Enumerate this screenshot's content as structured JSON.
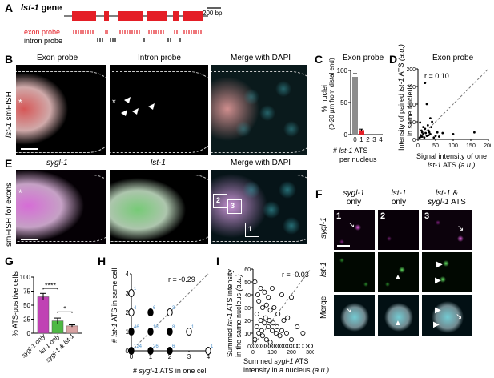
{
  "panels": {
    "A": {
      "letter": "A",
      "title_gene": "lst-1",
      "title_suffix": " gene",
      "scale_label": "200 bp",
      "exon_probe": "exon probe",
      "intron_probe": "intron probe"
    },
    "B": {
      "letter": "B",
      "row_label_gene": "lst-1",
      "row_label_suffix": " smFISH",
      "col1": "Exon  probe",
      "col2": "Intron probe",
      "col3": "Merge with DAPI"
    },
    "C": {
      "letter": "C",
      "title": "Exon probe",
      "ylabel_line1": "% nuclei",
      "ylabel_line2": "(0-20 µm from distal end)",
      "xlabel_gene": "lst-1",
      "xlabel_prefix": "# ",
      "xlabel_suffix": " ATS",
      "xlabel_line2": "per nucleus",
      "y_ticks": [
        "0",
        "50",
        "100"
      ],
      "x_ticks": [
        "0",
        "1",
        "2",
        "3",
        "4"
      ]
    },
    "D": {
      "letter": "D",
      "title": "Exon probe",
      "r_label": "r = 0.10",
      "ylabel_pre": "Intensity of paired ",
      "ylabel_gene": "lst-1",
      "ylabel_post": " ATS",
      "ylabel_line2": "in same nucleus",
      "ylabel_unit": "(a.u.)",
      "xlabel_line1": "Signal intensity of one",
      "xlabel_gene": "lst-1",
      "xlabel_post": " ATS",
      "xlabel_unit": "(a.u.)",
      "x_ticks": [
        "0",
        "50",
        "100",
        "150",
        "200"
      ],
      "y_ticks": [
        "0",
        "50",
        "100",
        "150",
        "200"
      ]
    },
    "E": {
      "letter": "E",
      "row_label": "smFISH for exons",
      "col1": "sygl-1",
      "col2": "lst-1",
      "col3": "Merge with DAPI",
      "boxes": [
        "1",
        "2",
        "3"
      ]
    },
    "F": {
      "letter": "F",
      "col1_gene": "sygl-1",
      "col1_line2": "only",
      "col2_gene": "lst-1",
      "col2_line2": "only",
      "col3_gene1": "lst-1",
      "col3_amp": " &",
      "col3_gene2": "sygl-1",
      "col3_post": " ATS",
      "row1": "sygl-1",
      "row2": "lst-1",
      "row3": "Merge",
      "tile_nums": [
        "1",
        "2",
        "3"
      ]
    },
    "G": {
      "letter": "G",
      "ylabel": "% ATS-positive cells",
      "y_ticks": [
        "0",
        "25",
        "50",
        "75",
        "100"
      ],
      "sig1": "****",
      "sig2": "*",
      "categories": [
        "sygl-1 only",
        "lst-1 only",
        "sygl-1 & lst-1"
      ]
    },
    "H": {
      "letter": "H",
      "r_label": "r = -0.29",
      "ylabel_pre": "# ",
      "ylabel_gene": "lst-1",
      "ylabel_post": " ATS in same cell",
      "xlabel_pre": "# ",
      "xlabel_gene": "sygl-1",
      "xlabel_post": " ATS in one cell",
      "x_ticks": [
        "0",
        "1",
        "2",
        "3",
        "4"
      ],
      "y_ticks": [
        "0",
        "1",
        "2",
        "3",
        "4"
      ],
      "counts": [
        "1",
        "4",
        "6",
        "3",
        "46",
        "18",
        "8",
        "1",
        "124",
        "26",
        "6",
        "1"
      ]
    },
    "I": {
      "letter": "I",
      "r_label": "r = -0.03",
      "ylabel_line1_pre": "Summed ",
      "ylabel_gene": "lst-1",
      "ylabel_line1_post": " ATS intensity",
      "ylabel_line2": "in the same nucleus",
      "ylabel_unit": "(a.u.)",
      "xlabel_line1_pre": "Summed ",
      "xlabel_gene": "sygl-1",
      "xlabel_line1_post": " ATS",
      "xlabel_line2": "intensity in a nucleus",
      "xlabel_unit": "(a.u.)",
      "x_ticks": [
        "0",
        "100",
        "200",
        "300"
      ],
      "y_ticks": [
        "0",
        "10",
        "20",
        "30",
        "40",
        "50",
        "60"
      ]
    }
  },
  "chart_data": [
    {
      "type": "bar",
      "panel": "C",
      "categories": [
        "0",
        "1",
        "2",
        "3",
        "4"
      ],
      "values": [
        90,
        7,
        0,
        0,
        0
      ],
      "errors": [
        5,
        1.5,
        0,
        0,
        0
      ],
      "ylim": [
        0,
        100
      ],
      "colors": [
        "#8c8c8c",
        "#e41e26",
        "#e41e26",
        "#e41e26",
        "#e41e26"
      ]
    },
    {
      "type": "scatter",
      "panel": "D",
      "xlim": [
        0,
        200
      ],
      "ylim": [
        0,
        200
      ],
      "points": [
        [
          5,
          5
        ],
        [
          8,
          12
        ],
        [
          10,
          8
        ],
        [
          12,
          20
        ],
        [
          15,
          15
        ],
        [
          18,
          5
        ],
        [
          20,
          30
        ],
        [
          22,
          18
        ],
        [
          25,
          10
        ],
        [
          28,
          40
        ],
        [
          30,
          25
        ],
        [
          32,
          20
        ],
        [
          35,
          15
        ],
        [
          38,
          35
        ],
        [
          40,
          50
        ],
        [
          20,
          160
        ],
        [
          25,
          100
        ],
        [
          45,
          5
        ],
        [
          50,
          10
        ],
        [
          55,
          20
        ],
        [
          60,
          8
        ],
        [
          15,
          35
        ],
        [
          10,
          25
        ],
        [
          100,
          15
        ],
        [
          160,
          20
        ],
        [
          35,
          60
        ],
        [
          6,
          48
        ],
        [
          30,
          12
        ],
        [
          12,
          8
        ],
        [
          70,
          18
        ]
      ]
    },
    {
      "type": "bar",
      "panel": "G",
      "categories": [
        "sygl-1 only",
        "lst-1 only",
        "sygl-1 & lst-1"
      ],
      "values": [
        65,
        22,
        13
      ],
      "errors": [
        6,
        5,
        2
      ],
      "ylim": [
        0,
        100
      ],
      "colors": [
        "#c042b4",
        "#4eb944",
        "#d9a3a3"
      ]
    },
    {
      "type": "scatter",
      "panel": "H",
      "xlim": [
        0,
        4
      ],
      "ylim": [
        0,
        4
      ],
      "points": [
        {
          "x": 0,
          "y": 3,
          "n": 1
        },
        {
          "x": 0,
          "y": 2,
          "n": 4
        },
        {
          "x": 1,
          "y": 2,
          "n": 6
        },
        {
          "x": 2,
          "y": 2,
          "n": 3
        },
        {
          "x": 0,
          "y": 1,
          "n": 46
        },
        {
          "x": 1,
          "y": 1,
          "n": 18
        },
        {
          "x": 2,
          "y": 1,
          "n": 8
        },
        {
          "x": 3,
          "y": 1,
          "n": 1
        },
        {
          "x": 0,
          "y": 0,
          "n": 124
        },
        {
          "x": 1,
          "y": 0,
          "n": 26
        },
        {
          "x": 2,
          "y": 0,
          "n": 6
        },
        {
          "x": 4,
          "y": 0,
          "n": 1
        }
      ]
    },
    {
      "type": "scatter",
      "panel": "I",
      "xlim": [
        0,
        300
      ],
      "ylim": [
        0,
        60
      ],
      "points": [
        [
          10,
          50
        ],
        [
          40,
          45
        ],
        [
          25,
          40
        ],
        [
          60,
          42
        ],
        [
          80,
          38
        ],
        [
          100,
          45
        ],
        [
          150,
          40
        ],
        [
          200,
          38
        ],
        [
          30,
          35
        ],
        [
          50,
          30
        ],
        [
          70,
          32
        ],
        [
          90,
          28
        ],
        [
          110,
          30
        ],
        [
          130,
          25
        ],
        [
          160,
          20
        ],
        [
          180,
          22
        ],
        [
          230,
          15
        ],
        [
          260,
          10
        ],
        [
          20,
          25
        ],
        [
          40,
          20
        ],
        [
          60,
          18
        ],
        [
          80,
          15
        ],
        [
          100,
          12
        ],
        [
          120,
          10
        ],
        [
          140,
          8
        ],
        [
          20,
          15
        ],
        [
          30,
          10
        ],
        [
          50,
          8
        ],
        [
          70,
          5
        ],
        [
          90,
          3
        ],
        [
          10,
          5
        ],
        [
          45,
          12
        ],
        [
          65,
          22
        ],
        [
          85,
          20
        ],
        [
          105,
          18
        ],
        [
          125,
          15
        ],
        [
          150,
          12
        ],
        [
          175,
          10
        ],
        [
          200,
          5
        ],
        [
          0,
          0
        ],
        [
          10,
          0
        ],
        [
          20,
          0
        ],
        [
          30,
          0
        ],
        [
          40,
          0
        ],
        [
          50,
          0
        ],
        [
          60,
          0
        ],
        [
          70,
          0
        ],
        [
          80,
          0
        ],
        [
          90,
          0
        ],
        [
          100,
          0
        ],
        [
          110,
          0
        ],
        [
          120,
          0
        ],
        [
          130,
          0
        ],
        [
          140,
          0
        ],
        [
          150,
          0
        ],
        [
          160,
          0
        ],
        [
          170,
          0
        ],
        [
          180,
          0
        ],
        [
          190,
          0
        ],
        [
          200,
          0
        ],
        [
          210,
          0
        ],
        [
          220,
          0
        ],
        [
          240,
          0
        ],
        [
          250,
          0
        ],
        [
          270,
          0
        ],
        [
          300,
          0
        ]
      ]
    }
  ]
}
